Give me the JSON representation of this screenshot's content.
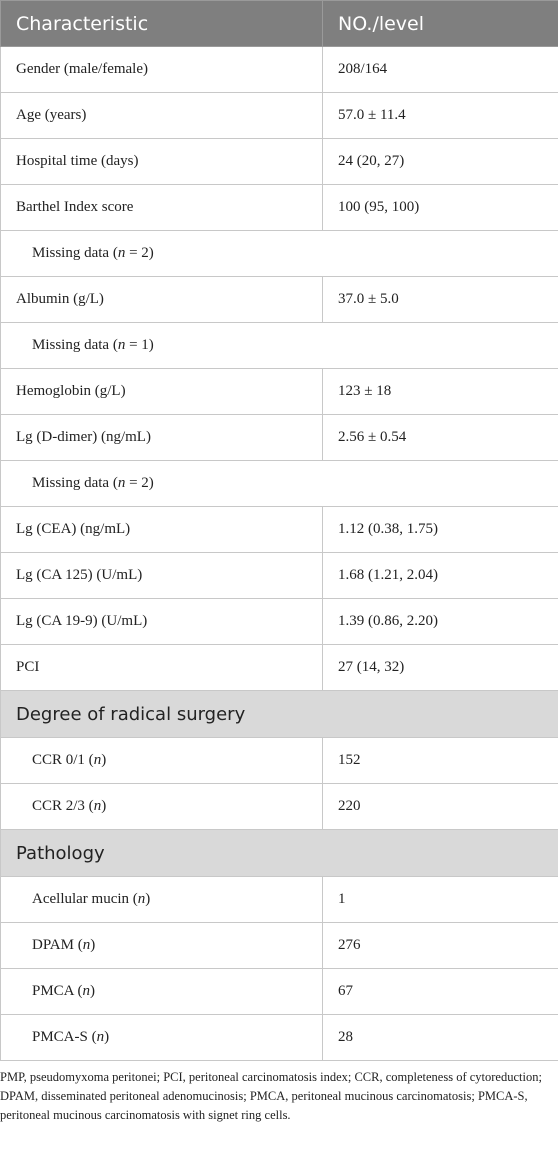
{
  "header": {
    "col1": "Characteristic",
    "col2": "NO./level"
  },
  "rows": [
    {
      "label": "Gender (male/female)",
      "value": "208/164"
    },
    {
      "label": "Age (years)",
      "value": "57.0 ± 11.4"
    },
    {
      "label": "Hospital time (days)",
      "value": "24 (20, 27)"
    },
    {
      "label": "Barthel Index score",
      "value": "100 (95, 100)"
    },
    {
      "label_pre": "Missing data (",
      "label_italic": "n",
      "label_post": " = 2)"
    },
    {
      "label": "Albumin (g/L)",
      "value": "37.0 ± 5.0"
    },
    {
      "label_pre": "Missing data (",
      "label_italic": "n",
      "label_post": " = 1)"
    },
    {
      "label": "Hemoglobin (g/L)",
      "value": "123 ± 18"
    },
    {
      "label": "Lg (D-dimer) (ng/mL)",
      "value": "2.56 ± 0.54"
    },
    {
      "label_pre": "Missing data (",
      "label_italic": "n",
      "label_post": " = 2)"
    },
    {
      "label": "Lg (CEA) (ng/mL)",
      "value": "1.12 (0.38, 1.75)"
    },
    {
      "label": "Lg (CA 125) (U/mL)",
      "value": "1.68 (1.21, 2.04)"
    },
    {
      "label": "Lg (CA 19-9) (U/mL)",
      "value": "1.39 (0.86, 2.20)"
    },
    {
      "label": "PCI",
      "value": "27 (14, 32)"
    }
  ],
  "section_radical": {
    "title": "Degree of radical surgery",
    "rows": [
      {
        "label_pre": "CCR 0/1 (",
        "label_italic": "n",
        "label_post": ")",
        "value": "152"
      },
      {
        "label_pre": "CCR 2/3 (",
        "label_italic": "n",
        "label_post": ")",
        "value": "220"
      }
    ]
  },
  "section_pathology": {
    "title": "Pathology",
    "rows": [
      {
        "label_pre": "Acellular mucin (",
        "label_italic": "n",
        "label_post": ")",
        "value": "1"
      },
      {
        "label_pre": "DPAM (",
        "label_italic": "n",
        "label_post": ")",
        "value": "276"
      },
      {
        "label_pre": "PMCA (",
        "label_italic": "n",
        "label_post": ")",
        "value": "67"
      },
      {
        "label_pre": "PMCA-S (",
        "label_italic": "n",
        "label_post": ")",
        "value": "28"
      }
    ]
  },
  "footnote": "PMP, pseudomyxoma peritonei; PCI, peritoneal carcinomatosis index; CCR, completeness of cytoreduction; DPAM, disseminated peritoneal adenomucinosis; PMCA, peritoneal mucinous carcinomatosis; PMCA-S, peritoneal mucinous carcinomatosis with signet ring cells."
}
